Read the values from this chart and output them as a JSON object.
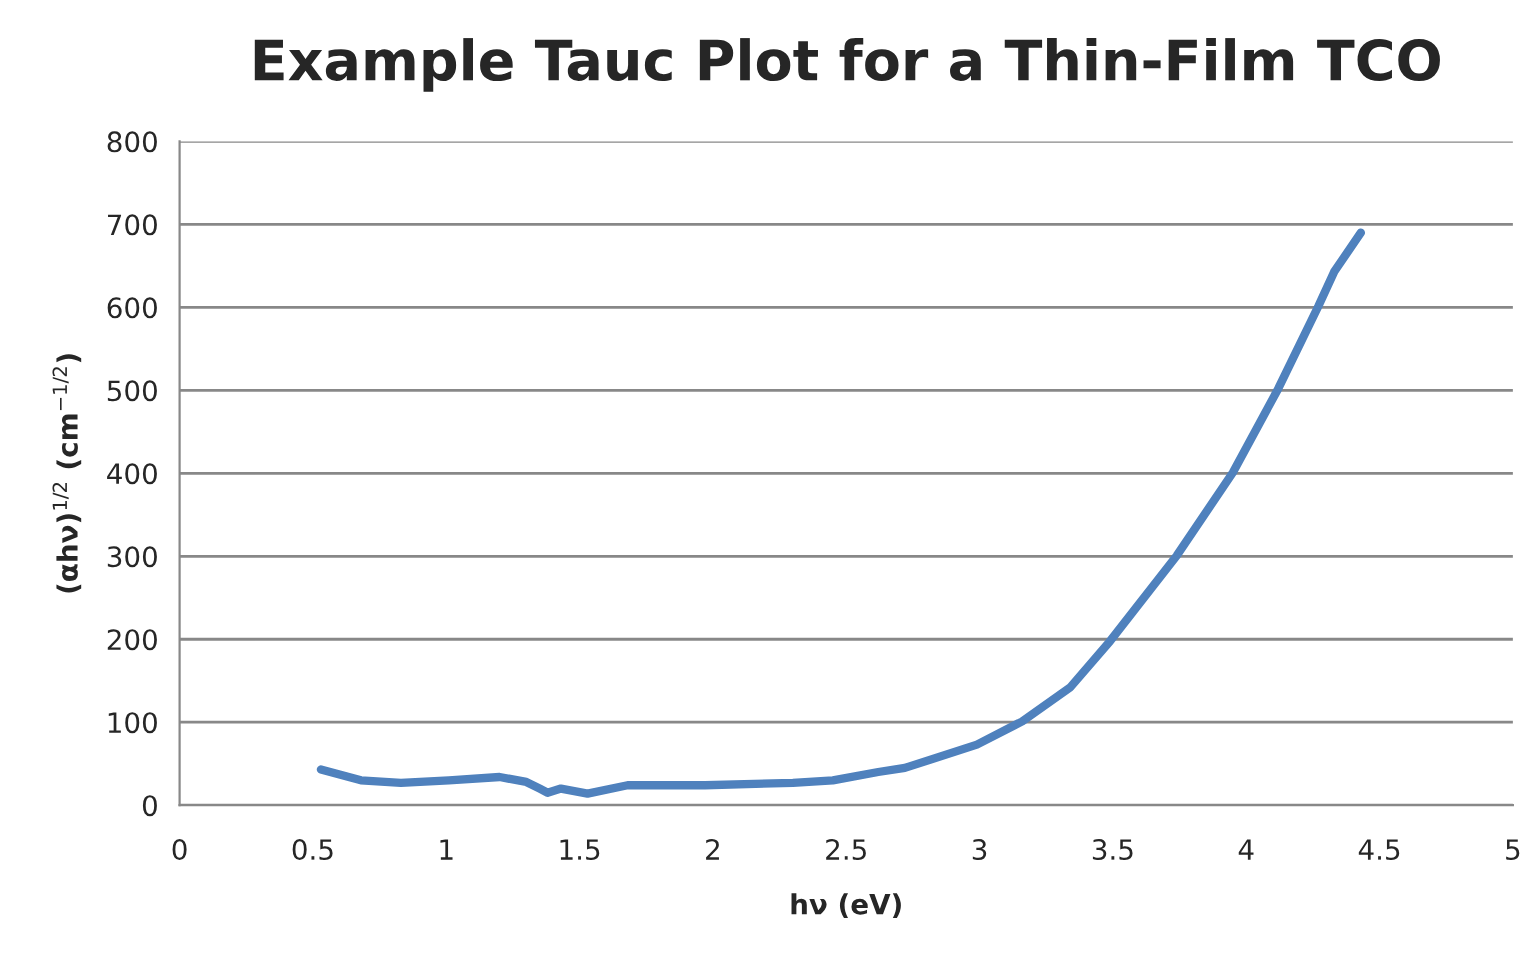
{
  "chart_data": {
    "type": "line",
    "title": "Example Tauc Plot for a Thin-Film TCO",
    "xlabel": "hν (eV)",
    "ylabel": "(αhν)$^{1/2}$ (cm$^{−1/2}$)",
    "series": [
      {
        "color": "#4f81bd",
        "x": [
          0.53,
          0.68,
          0.83,
          1.01,
          1.2,
          1.3,
          1.35,
          1.38,
          1.43,
          1.53,
          1.68,
          1.97,
          2.3,
          2.45,
          2.62,
          2.72,
          2.99,
          3.16,
          3.34,
          3.49,
          3.74,
          3.95,
          4.12,
          4.27,
          4.33,
          4.43
        ],
        "values": [
          43,
          30,
          27,
          30,
          34,
          28,
          20,
          15,
          20,
          14,
          24,
          24,
          27,
          30,
          40,
          45,
          73,
          101,
          142,
          198,
          301,
          401,
          502,
          601,
          643,
          690
        ]
      }
    ],
    "xlim": [
      0,
      5
    ],
    "xticks": [
      0,
      0.5,
      1,
      1.5,
      2,
      2.5,
      3,
      3.5,
      4,
      4.5,
      5
    ],
    "ylim": [
      0,
      800
    ],
    "yticks": [
      0,
      100,
      200,
      300,
      400,
      500,
      600,
      700,
      800
    ],
    "grid": "y",
    "marker": "none",
    "line_style": "solid"
  }
}
